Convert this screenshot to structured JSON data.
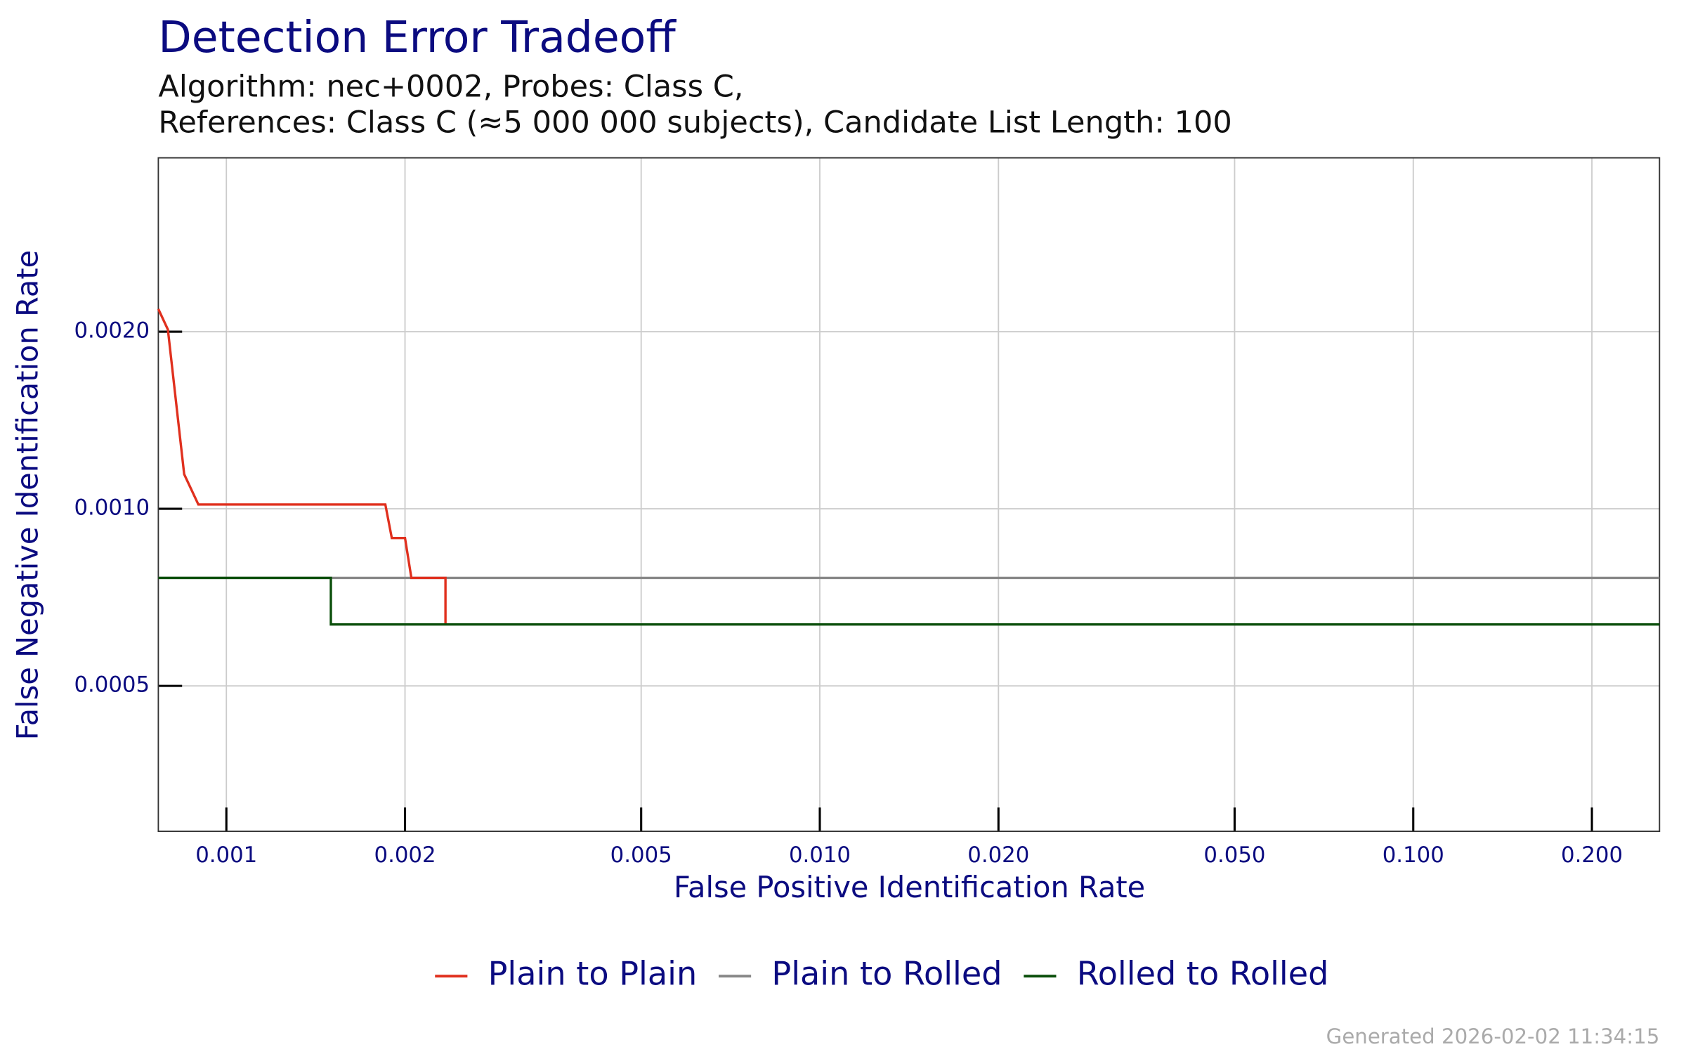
{
  "chart_data": {
    "type": "line",
    "title": "Detection Error Tradeoff",
    "subtitle": [
      "Algorithm: nec+0002, Probes: Class C,",
      "References: Class C (≈5 000 000 subjects), Candidate List Length: 100"
    ],
    "x_label": "False Positive Identification Rate",
    "y_label": "False Negative Identification Rate",
    "x_scale": "log",
    "y_scale": "log",
    "grid": true,
    "legend": "bottom",
    "xlim": [
      0.000768,
      0.26
    ],
    "ylim": [
      0.000283,
      0.00395
    ],
    "xticks": [
      {
        "value": 0.001,
        "label": "0.001"
      },
      {
        "value": 0.002,
        "label": "0.002"
      },
      {
        "value": 0.005,
        "label": "0.005"
      },
      {
        "value": 0.01,
        "label": "0.010"
      },
      {
        "value": 0.02,
        "label": "0.020"
      },
      {
        "value": 0.05,
        "label": "0.050"
      },
      {
        "value": 0.1,
        "label": "0.100"
      },
      {
        "value": 0.2,
        "label": "0.200"
      }
    ],
    "yticks": [
      {
        "value": 0.0005,
        "label": "0.0005"
      },
      {
        "value": 0.001,
        "label": "0.0010"
      },
      {
        "value": 0.002,
        "label": "0.0020"
      }
    ],
    "series": [
      {
        "name": "Plain to Plain",
        "color": "#e0301e",
        "x": [
          0.000768,
          0.000797,
          0.000849,
          0.000897,
          0.001853,
          0.0019,
          0.002,
          0.00205,
          0.00234,
          0.00234
        ],
        "values": [
          0.002186,
          0.002017,
          0.001145,
          0.001017,
          0.001017,
          0.000892,
          0.000892,
          0.000763,
          0.000763,
          0.000636
        ]
      },
      {
        "name": "Plain to Rolled",
        "color": "#888888",
        "x": [
          0.000768,
          0.26
        ],
        "values": [
          0.000763,
          0.000763
        ]
      },
      {
        "name": "Rolled to Rolled",
        "color": "#0b4f0b",
        "x": [
          0.000768,
          0.0015,
          0.0015,
          0.26
        ],
        "values": [
          0.000763,
          0.000763,
          0.000636,
          0.000636
        ]
      }
    ],
    "footer": "Generated 2026-02-02 11:34:15"
  }
}
